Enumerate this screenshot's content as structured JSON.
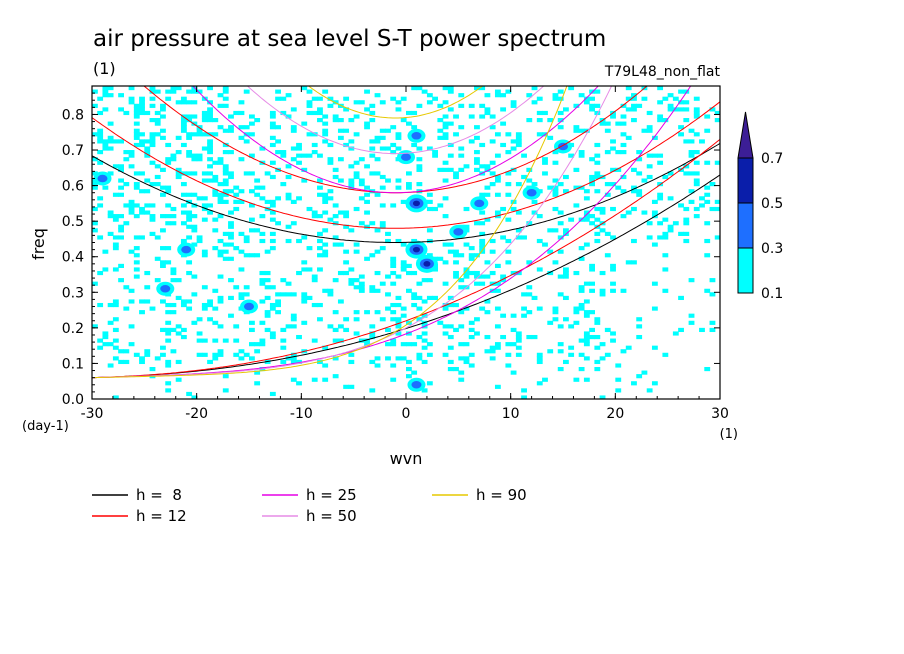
{
  "chart_data": {
    "type": "heatmap",
    "title": "air pressure at sea level S-T power spectrum",
    "subtitle_left": "(1)",
    "subtitle_right": "T79L48_non_flat",
    "xlabel": "wvn",
    "ylabel": "freq",
    "x_unit": "(1)",
    "y_unit": "(day-1)",
    "xlim": [
      -30,
      30
    ],
    "ylim": [
      0,
      0.88
    ],
    "x_ticks": [
      -30,
      -20,
      -10,
      0,
      10,
      20,
      30
    ],
    "x_tick_labels": [
      "-30",
      "-20",
      "-10",
      "0",
      "10",
      "20",
      "30"
    ],
    "y_ticks": [
      0.0,
      0.1,
      0.2,
      0.3,
      0.4,
      0.5,
      0.6,
      0.7,
      0.8
    ],
    "y_tick_labels": [
      "0.0",
      "0.1",
      "0.2",
      "0.3",
      "0.4",
      "0.5",
      "0.6",
      "0.7",
      "0.8"
    ],
    "colorbar": {
      "levels": [
        "0.1",
        "0.3",
        "0.5",
        "0.7"
      ],
      "colors": [
        "#00ffff",
        "#1e6fff",
        "#0a1eaa",
        "#3c1e96"
      ]
    },
    "notable_cells": [
      {
        "x": 1,
        "y": 0.42,
        "level": 3
      },
      {
        "x": 1,
        "y": 0.55,
        "level": 3
      },
      {
        "x": 2,
        "y": 0.38,
        "level": 3
      },
      {
        "x": 1,
        "y": 0.74,
        "level": 2
      },
      {
        "x": 0,
        "y": 0.68,
        "level": 2
      },
      {
        "x": 5,
        "y": 0.47,
        "level": 2
      },
      {
        "x": 15,
        "y": 0.71,
        "level": 2
      },
      {
        "x": -29,
        "y": 0.62,
        "level": 2
      },
      {
        "x": -21,
        "y": 0.42,
        "level": 2
      },
      {
        "x": -15,
        "y": 0.26,
        "level": 2
      },
      {
        "x": -23,
        "y": 0.31,
        "level": 2
      },
      {
        "x": 1,
        "y": 0.04,
        "level": 2
      },
      {
        "x": 7,
        "y": 0.55,
        "level": 2
      },
      {
        "x": 12,
        "y": 0.58,
        "level": 1
      }
    ],
    "dispersion_curves": [
      {
        "name": "h =  8",
        "color": "#000000",
        "depth_m": 8
      },
      {
        "name": "h = 12",
        "color": "#ff0000",
        "depth_m": 12
      },
      {
        "name": "h = 25",
        "color": "#e600e6",
        "depth_m": 25
      },
      {
        "name": "h = 50",
        "color": "#e68ce6",
        "depth_m": 50
      },
      {
        "name": "h = 90",
        "color": "#e6c800",
        "depth_m": 90
      }
    ]
  }
}
